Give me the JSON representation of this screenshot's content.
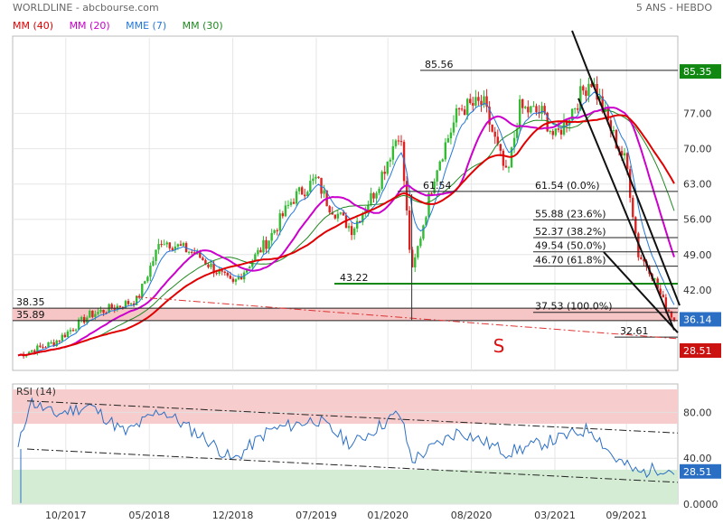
{
  "header": {
    "title": "WORLDLINE - abcbourse.com",
    "period": "5 ANS - HEBDO"
  },
  "legend": [
    {
      "label": "MM (40)",
      "color": "#e00000"
    },
    {
      "label": "MM (20)",
      "color": "#cc00cc"
    },
    {
      "label": "MME (7)",
      "color": "#2277dd"
    },
    {
      "label": "MM (30)",
      "color": "#228822"
    }
  ],
  "colors": {
    "candle_up": "#33bb33",
    "candle_down": "#dd2222",
    "support_band": "#f6c6c6",
    "rsi_over": "#f6cccc",
    "rsi_under": "#d4ecd4",
    "rsi_line": "#2b6fc4",
    "price_tag": "#2b6fc4",
    "target_tag": "#cc1111",
    "ma30_tag": "#118811"
  },
  "chart_data": [
    {
      "type": "candlestick",
      "title": "",
      "price_axis_ticks": [
        "85.35",
        "77.00",
        "70.00",
        "63.00",
        "56.00",
        "49.00",
        "42.00",
        "36.14",
        "28.51"
      ],
      "ylim": [
        26,
        92
      ],
      "x_ticks": [
        "10/2017",
        "05/2018",
        "12/2018",
        "07/2019",
        "01/2020",
        "08/2020",
        "03/2021",
        "09/2021"
      ],
      "close_key_points": [
        {
          "date": "2017-06",
          "close": 29.0
        },
        {
          "date": "2017-09",
          "close": 31.5
        },
        {
          "date": "2017-12",
          "close": 37.0
        },
        {
          "date": "2018-04",
          "close": 40.0
        },
        {
          "date": "2018-06",
          "close": 52.0
        },
        {
          "date": "2018-09",
          "close": 49.0
        },
        {
          "date": "2018-12",
          "close": 43.0
        },
        {
          "date": "2019-03",
          "close": 52.0
        },
        {
          "date": "2019-05",
          "close": 60.0
        },
        {
          "date": "2019-07",
          "close": 64.0
        },
        {
          "date": "2019-08",
          "close": 59.0
        },
        {
          "date": "2019-10",
          "close": 54.0
        },
        {
          "date": "2019-12",
          "close": 62.0
        },
        {
          "date": "2020-02",
          "close": 74.0
        },
        {
          "date": "2020-03",
          "close": 45.0
        },
        {
          "date": "2020-05",
          "close": 66.0
        },
        {
          "date": "2020-07",
          "close": 78.0
        },
        {
          "date": "2020-09",
          "close": 79.0
        },
        {
          "date": "2020-11",
          "close": 64.0
        },
        {
          "date": "2020-12",
          "close": 78.0
        },
        {
          "date": "2021-02",
          "close": 77.0
        },
        {
          "date": "2021-03",
          "close": 72.0
        },
        {
          "date": "2021-05",
          "close": 80.0
        },
        {
          "date": "2021-06",
          "close": 84.0
        },
        {
          "date": "2021-08",
          "close": 72.0
        },
        {
          "date": "2021-09",
          "close": 67.0
        },
        {
          "date": "2021-10",
          "close": 49.0
        },
        {
          "date": "2021-11",
          "close": 46.0
        },
        {
          "date": "2021-12",
          "close": 40.0
        },
        {
          "date": "2022-01",
          "close": 36.14
        }
      ],
      "levels": [
        {
          "label": "85.56",
          "value": 85.56
        },
        {
          "label": "61.54  (0.0%)",
          "value": 61.54
        },
        {
          "label": "55.88  (23.6%)",
          "value": 55.88
        },
        {
          "label": "52.37  (38.2%)",
          "value": 52.37
        },
        {
          "label": "49.54  (50.0%)",
          "value": 49.54
        },
        {
          "label": "46.70  (61.8%)",
          "value": 46.7
        },
        {
          "label": "43.22",
          "value": 43.22
        },
        {
          "label": "38.35",
          "value": 38.35
        },
        {
          "label": "37.53  (100.0%)",
          "value": 37.53
        },
        {
          "label": "35.89",
          "value": 35.89
        },
        {
          "label": "32.61",
          "value": 32.61
        }
      ],
      "extra_labels": [
        "61.54"
      ],
      "annotation": "S",
      "last_price": "36.14",
      "top_price_tag": "85.35",
      "target_tag": "28.51"
    },
    {
      "type": "line",
      "title": "RSI (14)",
      "y_ticks": [
        "80.00",
        "40.00",
        "0.0000"
      ],
      "ylim": [
        0,
        100
      ],
      "overbought": 70,
      "oversold": 30,
      "last_value": "28.51",
      "key_points": [
        {
          "date": "2017-06",
          "value": 48
        },
        {
          "date": "2017-07",
          "value": 90
        },
        {
          "date": "2017-09",
          "value": 78
        },
        {
          "date": "2017-12",
          "value": 86
        },
        {
          "date": "2018-03",
          "value": 62
        },
        {
          "date": "2018-06",
          "value": 82
        },
        {
          "date": "2018-10",
          "value": 55
        },
        {
          "date": "2018-12",
          "value": 38
        },
        {
          "date": "2019-03",
          "value": 64
        },
        {
          "date": "2019-07",
          "value": 74
        },
        {
          "date": "2019-10",
          "value": 52
        },
        {
          "date": "2020-02",
          "value": 80
        },
        {
          "date": "2020-03",
          "value": 38
        },
        {
          "date": "2020-07",
          "value": 64
        },
        {
          "date": "2020-11",
          "value": 45
        },
        {
          "date": "2021-03",
          "value": 56
        },
        {
          "date": "2021-06",
          "value": 66
        },
        {
          "date": "2021-08",
          "value": 40
        },
        {
          "date": "2021-10",
          "value": 27
        },
        {
          "date": "2021-12",
          "value": 32
        },
        {
          "date": "2022-01",
          "value": 28.51
        }
      ]
    }
  ]
}
